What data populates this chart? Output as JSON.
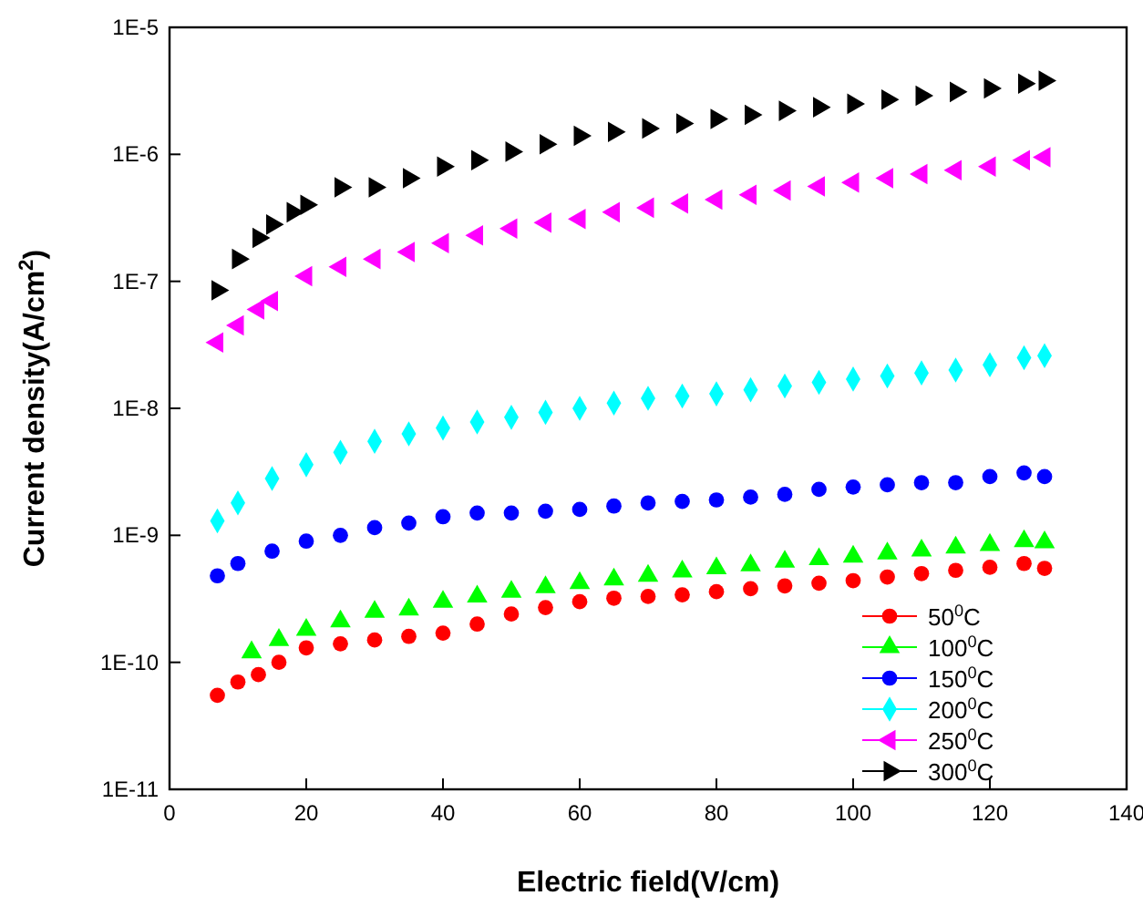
{
  "chart_data": {
    "type": "scatter",
    "xlabel": "Electric field(V/cm)",
    "ylabel": "Current density(A/cm$^{2}$)",
    "log": "y",
    "xlim": [
      0,
      140
    ],
    "xticks": [
      0,
      20,
      40,
      60,
      80,
      100,
      120,
      140
    ],
    "ylim": [
      1e-11,
      1e-05
    ],
    "yticks": [
      {
        "value": 1e-11,
        "label": "1E-11"
      },
      {
        "value": 1e-10,
        "label": "1E-10"
      },
      {
        "value": 1e-09,
        "label": "1E-9"
      },
      {
        "value": 1e-08,
        "label": "1E-8"
      },
      {
        "value": 1e-07,
        "label": "1E-7"
      },
      {
        "value": 1e-06,
        "label": "1E-6"
      },
      {
        "value": 1e-05,
        "label": "1E-5"
      }
    ],
    "grid": false,
    "legend": "bottom right",
    "series": [
      {
        "name": "50$^{0}$C",
        "color": "#ff0000",
        "marker": "circle",
        "x": [
          7,
          10,
          13,
          16,
          20,
          25,
          30,
          35,
          40,
          45,
          50,
          55,
          60,
          65,
          70,
          75,
          80,
          85,
          90,
          95,
          100,
          105,
          110,
          115,
          120,
          125,
          128
        ],
        "values": [
          5.5e-11,
          7e-11,
          8e-11,
          1e-10,
          1.3e-10,
          1.4e-10,
          1.5e-10,
          1.6e-10,
          1.7e-10,
          2e-10,
          2.4e-10,
          2.7e-10,
          3e-10,
          3.2e-10,
          3.3e-10,
          3.4e-10,
          3.6e-10,
          3.8e-10,
          4e-10,
          4.2e-10,
          4.4e-10,
          4.7e-10,
          5e-10,
          5.3e-10,
          5.6e-10,
          6e-10,
          5.5e-10
        ]
      },
      {
        "name": "100$^{0}$C",
        "color": "#00ff00",
        "marker": "triangle",
        "x": [
          12,
          16,
          20,
          25,
          30,
          35,
          40,
          45,
          50,
          55,
          60,
          65,
          70,
          75,
          80,
          85,
          90,
          95,
          100,
          105,
          110,
          115,
          120,
          125,
          128
        ],
        "values": [
          1.2e-10,
          1.5e-10,
          1.8e-10,
          2.1e-10,
          2.5e-10,
          2.6e-10,
          3e-10,
          3.3e-10,
          3.6e-10,
          3.9e-10,
          4.2e-10,
          4.5e-10,
          4.8e-10,
          5.2e-10,
          5.5e-10,
          5.8e-10,
          6.2e-10,
          6.5e-10,
          6.8e-10,
          7.2e-10,
          7.6e-10,
          8e-10,
          8.4e-10,
          9e-10,
          8.8e-10
        ]
      },
      {
        "name": "150$^{0}$C",
        "color": "#0000ff",
        "marker": "circle",
        "x": [
          7,
          10,
          15,
          20,
          25,
          30,
          35,
          40,
          45,
          50,
          55,
          60,
          65,
          70,
          75,
          80,
          85,
          90,
          95,
          100,
          105,
          110,
          115,
          120,
          125,
          128
        ],
        "values": [
          4.8e-10,
          6e-10,
          7.5e-10,
          9e-10,
          1e-09,
          1.15e-09,
          1.25e-09,
          1.4e-09,
          1.5e-09,
          1.5e-09,
          1.55e-09,
          1.6e-09,
          1.7e-09,
          1.8e-09,
          1.85e-09,
          1.9e-09,
          2e-09,
          2.1e-09,
          2.3e-09,
          2.4e-09,
          2.5e-09,
          2.6e-09,
          2.6e-09,
          2.9e-09,
          3.1e-09,
          2.9e-09
        ]
      },
      {
        "name": "200$^{0}$C",
        "color": "#00ffff",
        "marker": "diamond",
        "x": [
          7,
          10,
          15,
          20,
          25,
          30,
          35,
          40,
          45,
          50,
          55,
          60,
          65,
          70,
          75,
          80,
          85,
          90,
          95,
          100,
          105,
          110,
          115,
          120,
          125,
          128
        ],
        "values": [
          1.3e-09,
          1.8e-09,
          2.8e-09,
          3.6e-09,
          4.5e-09,
          5.5e-09,
          6.3e-09,
          7e-09,
          7.8e-09,
          8.5e-09,
          9.3e-09,
          1e-08,
          1.1e-08,
          1.2e-08,
          1.25e-08,
          1.3e-08,
          1.4e-08,
          1.5e-08,
          1.6e-08,
          1.7e-08,
          1.8e-08,
          1.9e-08,
          2e-08,
          2.2e-08,
          2.5e-08,
          2.6e-08
        ]
      },
      {
        "name": "250$^{0}$C",
        "color": "#ff00ff",
        "marker": "triangle-left",
        "x": [
          7,
          10,
          13,
          15,
          20,
          25,
          30,
          35,
          40,
          45,
          50,
          55,
          60,
          65,
          70,
          75,
          80,
          85,
          90,
          95,
          100,
          105,
          110,
          115,
          120,
          125,
          128
        ],
        "values": [
          3.3e-08,
          4.5e-08,
          6e-08,
          7e-08,
          1.1e-07,
          1.3e-07,
          1.5e-07,
          1.7e-07,
          2e-07,
          2.3e-07,
          2.6e-07,
          2.9e-07,
          3.1e-07,
          3.5e-07,
          3.8e-07,
          4.1e-07,
          4.4e-07,
          4.8e-07,
          5.2e-07,
          5.6e-07,
          6e-07,
          6.5e-07,
          7e-07,
          7.5e-07,
          8e-07,
          9e-07,
          9.5e-07
        ]
      },
      {
        "name": "300$^{0}$C",
        "color": "#000000",
        "marker": "triangle-right",
        "x": [
          7,
          10,
          13,
          15,
          18,
          20,
          25,
          30,
          35,
          40,
          45,
          50,
          55,
          60,
          65,
          70,
          75,
          80,
          85,
          90,
          95,
          100,
          105,
          110,
          115,
          120,
          125,
          128
        ],
        "values": [
          8.5e-08,
          1.5e-07,
          2.2e-07,
          2.8e-07,
          3.5e-07,
          4e-07,
          5.5e-07,
          5.5e-07,
          6.5e-07,
          8e-07,
          9e-07,
          1.05e-06,
          1.2e-06,
          1.4e-06,
          1.5e-06,
          1.6e-06,
          1.75e-06,
          1.9e-06,
          2.05e-06,
          2.2e-06,
          2.35e-06,
          2.5e-06,
          2.7e-06,
          2.9e-06,
          3.1e-06,
          3.3e-06,
          3.6e-06,
          3.8e-06
        ]
      }
    ]
  }
}
